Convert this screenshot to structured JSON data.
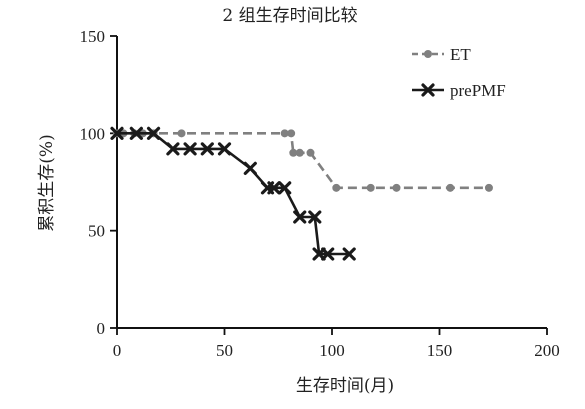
{
  "chart_data": {
    "type": "line",
    "title": "2 组生存时间比较",
    "xlabel": "生存时间(月)",
    "ylabel": "累积生存(%)",
    "xlim": [
      0,
      200
    ],
    "ylim": [
      0,
      150
    ],
    "x_ticks": [
      0,
      50,
      100,
      150,
      200
    ],
    "y_ticks": [
      0,
      50,
      100,
      150
    ],
    "grid": false,
    "legend_position": "top-right",
    "series": [
      {
        "name": "ET",
        "color": "#808080",
        "line_style": "dashed",
        "marker": "circle",
        "x": [
          0,
          3,
          8,
          12,
          17,
          30,
          78,
          81,
          82,
          85,
          90,
          102,
          118,
          130,
          155,
          173
        ],
        "y": [
          100,
          100,
          100,
          100,
          100,
          100,
          100,
          100,
          90,
          90,
          90,
          72,
          72,
          72,
          72,
          72
        ]
      },
      {
        "name": "prePMF",
        "color": "#1a1a1a",
        "line_style": "solid",
        "marker": "x",
        "x": [
          0,
          9,
          17,
          26,
          34,
          42,
          50,
          62,
          70,
          73,
          78,
          85,
          92,
          94,
          98,
          108
        ],
        "y": [
          100,
          100,
          100,
          92,
          92,
          92,
          92,
          82,
          72,
          72,
          72,
          57,
          57,
          38,
          38,
          38
        ]
      }
    ]
  }
}
